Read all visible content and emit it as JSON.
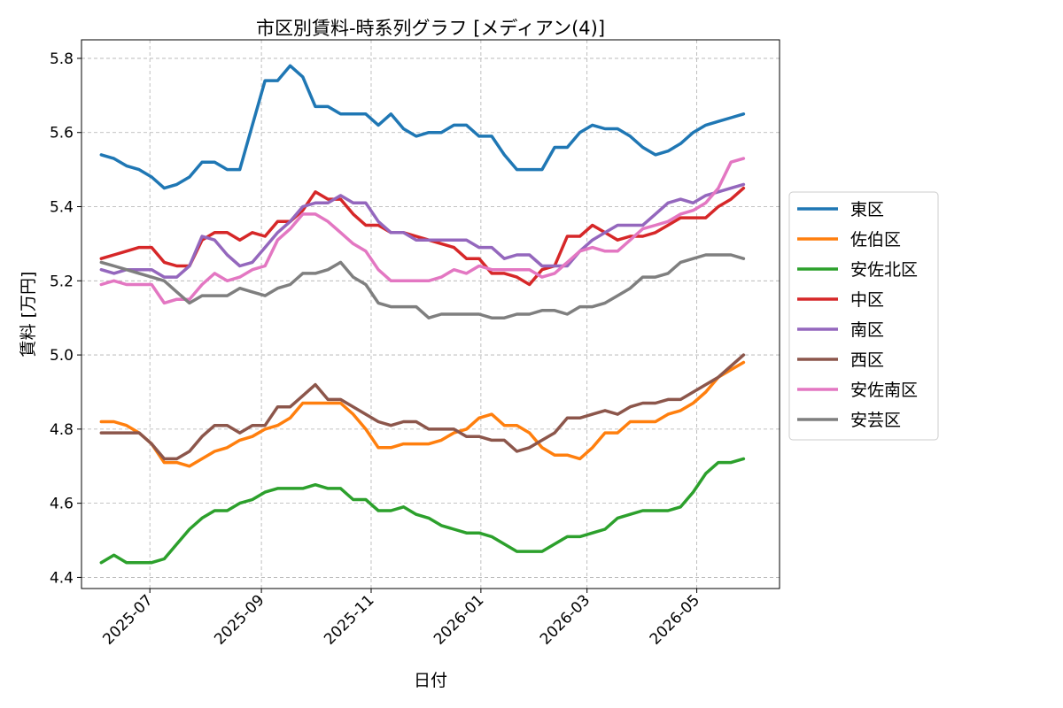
{
  "chart_data": {
    "type": "line",
    "title": "市区別賃料-時系列グラフ [メディアン(4)]",
    "xlabel": "日付",
    "ylabel": "賃料 [万円]",
    "ylim": [
      4.37,
      5.85
    ],
    "xlim": [
      "2025-05-24",
      "2026-06-16"
    ],
    "yticks": [
      4.4,
      4.6,
      4.8,
      5.0,
      5.2,
      5.4,
      5.6,
      5.8
    ],
    "ytick_labels": [
      "4.4",
      "4.6",
      "4.8",
      "5.0",
      "5.2",
      "5.4",
      "5.6",
      "5.8"
    ],
    "xticks": [
      "2025-07-01",
      "2025-09-01",
      "2025-11-01",
      "2026-01-01",
      "2026-03-01",
      "2026-05-01"
    ],
    "xtick_labels": [
      "2025-07",
      "2025-09",
      "2025-11",
      "2026-01",
      "2026-03",
      "2026-05"
    ],
    "grid": true,
    "legend_position": "right-outside",
    "x": [
      "2025-06-04",
      "2025-06-11",
      "2025-06-18",
      "2025-06-25",
      "2025-07-02",
      "2025-07-09",
      "2025-07-16",
      "2025-07-23",
      "2025-07-30",
      "2025-08-06",
      "2025-08-13",
      "2025-08-20",
      "2025-08-27",
      "2025-09-03",
      "2025-09-10",
      "2025-09-17",
      "2025-09-24",
      "2025-10-01",
      "2025-10-08",
      "2025-10-15",
      "2025-10-22",
      "2025-10-29",
      "2025-11-05",
      "2025-11-12",
      "2025-11-19",
      "2025-11-26",
      "2025-12-03",
      "2025-12-10",
      "2025-12-17",
      "2025-12-24",
      "2025-12-31",
      "2026-01-07",
      "2026-01-14",
      "2026-01-21",
      "2026-01-28",
      "2026-02-04",
      "2026-02-11",
      "2026-02-18",
      "2026-02-25",
      "2026-03-04",
      "2026-03-11",
      "2026-03-18",
      "2026-03-25",
      "2026-04-01",
      "2026-04-08",
      "2026-04-15",
      "2026-04-22",
      "2026-04-29",
      "2026-05-06",
      "2026-05-13",
      "2026-05-20",
      "2026-05-27"
    ],
    "series": [
      {
        "name": "東区",
        "color": "#1f77b4",
        "values": [
          5.54,
          5.53,
          5.51,
          5.5,
          5.48,
          5.45,
          5.46,
          5.48,
          5.52,
          5.52,
          5.5,
          5.5,
          5.62,
          5.74,
          5.74,
          5.78,
          5.75,
          5.67,
          5.67,
          5.65,
          5.65,
          5.65,
          5.62,
          5.65,
          5.61,
          5.59,
          5.6,
          5.6,
          5.62,
          5.62,
          5.59,
          5.59,
          5.54,
          5.5,
          5.5,
          5.5,
          5.56,
          5.56,
          5.6,
          5.62,
          5.61,
          5.61,
          5.59,
          5.56,
          5.54,
          5.55,
          5.57,
          5.6,
          5.62,
          5.63,
          5.64,
          5.65
        ]
      },
      {
        "name": "佐伯区",
        "color": "#ff7f0e",
        "values": [
          4.82,
          4.82,
          4.81,
          4.79,
          4.76,
          4.71,
          4.71,
          4.7,
          4.72,
          4.74,
          4.75,
          4.77,
          4.78,
          4.8,
          4.81,
          4.83,
          4.87,
          4.87,
          4.87,
          4.87,
          4.84,
          4.8,
          4.75,
          4.75,
          4.76,
          4.76,
          4.76,
          4.77,
          4.79,
          4.8,
          4.83,
          4.84,
          4.81,
          4.81,
          4.79,
          4.75,
          4.73,
          4.73,
          4.72,
          4.75,
          4.79,
          4.79,
          4.82,
          4.82,
          4.82,
          4.84,
          4.85,
          4.87,
          4.9,
          4.94,
          4.96,
          4.98
        ]
      },
      {
        "name": "安佐北区",
        "color": "#2ca02c",
        "values": [
          4.44,
          4.46,
          4.44,
          4.44,
          4.44,
          4.45,
          4.49,
          4.53,
          4.56,
          4.58,
          4.58,
          4.6,
          4.61,
          4.63,
          4.64,
          4.64,
          4.64,
          4.65,
          4.64,
          4.64,
          4.61,
          4.61,
          4.58,
          4.58,
          4.59,
          4.57,
          4.56,
          4.54,
          4.53,
          4.52,
          4.52,
          4.51,
          4.49,
          4.47,
          4.47,
          4.47,
          4.49,
          4.51,
          4.51,
          4.52,
          4.53,
          4.56,
          4.57,
          4.58,
          4.58,
          4.58,
          4.59,
          4.63,
          4.68,
          4.71,
          4.71,
          4.72
        ]
      },
      {
        "name": "中区",
        "color": "#d62728",
        "values": [
          5.26,
          5.27,
          5.28,
          5.29,
          5.29,
          5.25,
          5.24,
          5.24,
          5.31,
          5.33,
          5.33,
          5.31,
          5.33,
          5.32,
          5.36,
          5.36,
          5.39,
          5.44,
          5.42,
          5.42,
          5.38,
          5.35,
          5.35,
          5.33,
          5.33,
          5.32,
          5.31,
          5.3,
          5.29,
          5.26,
          5.26,
          5.22,
          5.22,
          5.21,
          5.19,
          5.23,
          5.24,
          5.32,
          5.32,
          5.35,
          5.33,
          5.31,
          5.32,
          5.32,
          5.33,
          5.35,
          5.37,
          5.37,
          5.37,
          5.4,
          5.42,
          5.45
        ]
      },
      {
        "name": "南区",
        "color": "#9467bd",
        "values": [
          5.23,
          5.22,
          5.23,
          5.23,
          5.23,
          5.21,
          5.21,
          5.24,
          5.32,
          5.31,
          5.27,
          5.24,
          5.25,
          5.29,
          5.33,
          5.36,
          5.4,
          5.41,
          5.41,
          5.43,
          5.41,
          5.41,
          5.36,
          5.33,
          5.33,
          5.31,
          5.31,
          5.31,
          5.31,
          5.31,
          5.29,
          5.29,
          5.26,
          5.27,
          5.27,
          5.24,
          5.24,
          5.24,
          5.28,
          5.31,
          5.33,
          5.35,
          5.35,
          5.35,
          5.38,
          5.41,
          5.42,
          5.41,
          5.43,
          5.44,
          5.45,
          5.46
        ]
      },
      {
        "name": "西区",
        "color": "#8c564b",
        "values": [
          4.79,
          4.79,
          4.79,
          4.79,
          4.76,
          4.72,
          4.72,
          4.74,
          4.78,
          4.81,
          4.81,
          4.79,
          4.81,
          4.81,
          4.86,
          4.86,
          4.89,
          4.92,
          4.88,
          4.88,
          4.86,
          4.84,
          4.82,
          4.81,
          4.82,
          4.82,
          4.8,
          4.8,
          4.8,
          4.78,
          4.78,
          4.77,
          4.77,
          4.74,
          4.75,
          4.77,
          4.79,
          4.83,
          4.83,
          4.84,
          4.85,
          4.84,
          4.86,
          4.87,
          4.87,
          4.88,
          4.88,
          4.9,
          4.92,
          4.94,
          4.97,
          5.0
        ]
      },
      {
        "name": "安佐南区",
        "color": "#e377c2",
        "values": [
          5.19,
          5.2,
          5.19,
          5.19,
          5.19,
          5.14,
          5.15,
          5.15,
          5.19,
          5.22,
          5.2,
          5.21,
          5.23,
          5.24,
          5.31,
          5.34,
          5.38,
          5.38,
          5.36,
          5.33,
          5.3,
          5.28,
          5.23,
          5.2,
          5.2,
          5.2,
          5.2,
          5.21,
          5.23,
          5.22,
          5.24,
          5.23,
          5.23,
          5.23,
          5.23,
          5.21,
          5.22,
          5.25,
          5.28,
          5.29,
          5.28,
          5.28,
          5.31,
          5.34,
          5.35,
          5.36,
          5.38,
          5.39,
          5.41,
          5.45,
          5.52,
          5.53
        ]
      },
      {
        "name": "安芸区",
        "color": "#7f7f7f",
        "values": [
          5.25,
          5.24,
          5.23,
          5.22,
          5.21,
          5.2,
          5.17,
          5.14,
          5.16,
          5.16,
          5.16,
          5.18,
          5.17,
          5.16,
          5.18,
          5.19,
          5.22,
          5.22,
          5.23,
          5.25,
          5.21,
          5.19,
          5.14,
          5.13,
          5.13,
          5.13,
          5.1,
          5.11,
          5.11,
          5.11,
          5.11,
          5.1,
          5.1,
          5.11,
          5.11,
          5.12,
          5.12,
          5.11,
          5.13,
          5.13,
          5.14,
          5.16,
          5.18,
          5.21,
          5.21,
          5.22,
          5.25,
          5.26,
          5.27,
          5.27,
          5.27,
          5.26
        ]
      }
    ]
  }
}
